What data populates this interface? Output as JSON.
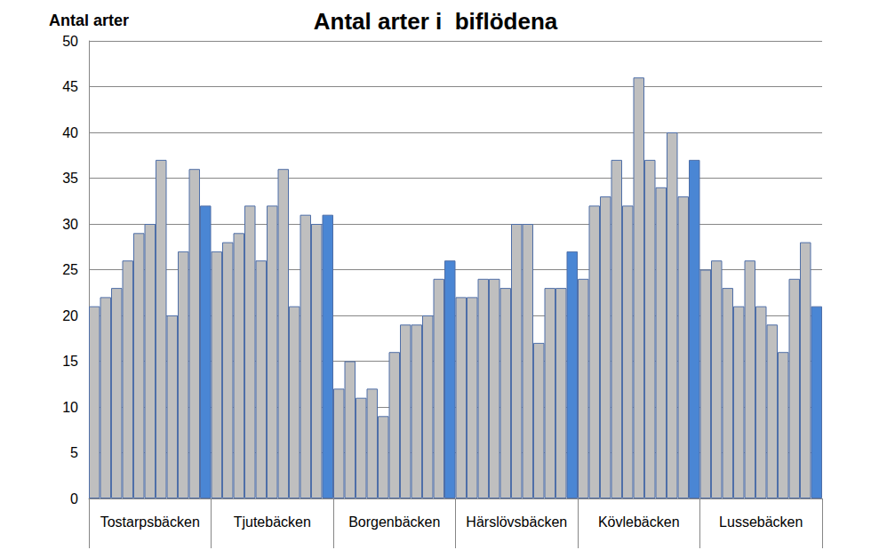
{
  "chart_data": {
    "type": "bar",
    "title": "Antal arter i  biflödena",
    "y_label": "Antal arter",
    "categories": [
      null,
      null,
      null,
      null,
      null,
      "Tostarpsbäcken",
      null,
      null,
      null,
      null,
      null,
      null,
      null,
      null,
      null,
      null,
      "Tjutebäcken",
      null,
      null,
      null,
      null,
      null,
      null,
      null,
      null,
      null,
      null,
      "Borgenbäcken",
      null,
      null,
      null,
      null,
      null,
      null,
      null,
      null,
      null,
      null,
      "Härslövsbäcken",
      null,
      null,
      null,
      null,
      null,
      null,
      null,
      null,
      null,
      null,
      "Kövlebäcken",
      null,
      null,
      null,
      null,
      null,
      null,
      null,
      null,
      null,
      null,
      "Lussebäcken",
      null,
      null,
      null,
      null,
      null
    ],
    "values": [
      21,
      22,
      23,
      26,
      29,
      30,
      37,
      20,
      27,
      36,
      32,
      27,
      28,
      29,
      32,
      26,
      32,
      36,
      21,
      31,
      30,
      31,
      12,
      15,
      11,
      12,
      9,
      16,
      19,
      19,
      20,
      24,
      26,
      22,
      22,
      24,
      24,
      23,
      30,
      30,
      17,
      23,
      23,
      27,
      24,
      32,
      33,
      37,
      32,
      46,
      37,
      34,
      40,
      33,
      37,
      25,
      26,
      23,
      21,
      26,
      21,
      19,
      16,
      24,
      28,
      21
    ],
    "colors": [
      "#bfbfbf",
      "#bfbfbf",
      "#bfbfbf",
      "#bfbfbf",
      "#bfbfbf",
      "#bfbfbf",
      "#bfbfbf",
      "#bfbfbf",
      "#bfbfbf",
      "#bfbfbf",
      "#4a86d4",
      "#bfbfbf",
      "#bfbfbf",
      "#bfbfbf",
      "#bfbfbf",
      "#bfbfbf",
      "#bfbfbf",
      "#bfbfbf",
      "#bfbfbf",
      "#bfbfbf",
      "#bfbfbf",
      "#4a86d4",
      "#bfbfbf",
      "#bfbfbf",
      "#bfbfbf",
      "#bfbfbf",
      "#bfbfbf",
      "#bfbfbf",
      "#bfbfbf",
      "#bfbfbf",
      "#bfbfbf",
      "#bfbfbf",
      "#4a86d4",
      "#bfbfbf",
      "#bfbfbf",
      "#bfbfbf",
      "#bfbfbf",
      "#bfbfbf",
      "#bfbfbf",
      "#bfbfbf",
      "#bfbfbf",
      "#bfbfbf",
      "#bfbfbf",
      "#4a86d4",
      "#bfbfbf",
      "#bfbfbf",
      "#bfbfbf",
      "#bfbfbf",
      "#bfbfbf",
      "#bfbfbf",
      "#bfbfbf",
      "#bfbfbf",
      "#bfbfbf",
      "#bfbfbf",
      "#4a86d4",
      "#bfbfbf",
      "#bfbfbf",
      "#bfbfbf",
      "#bfbfbf",
      "#bfbfbf",
      "#bfbfbf",
      "#bfbfbf",
      "#bfbfbf",
      "#bfbfbf",
      "#bfbfbf",
      "#4a86d4"
    ],
    "ylim": [
      0,
      50
    ],
    "yticks": [
      0,
      5,
      10,
      15,
      20,
      25,
      30,
      35,
      40,
      45,
      50
    ],
    "grid": true
  }
}
